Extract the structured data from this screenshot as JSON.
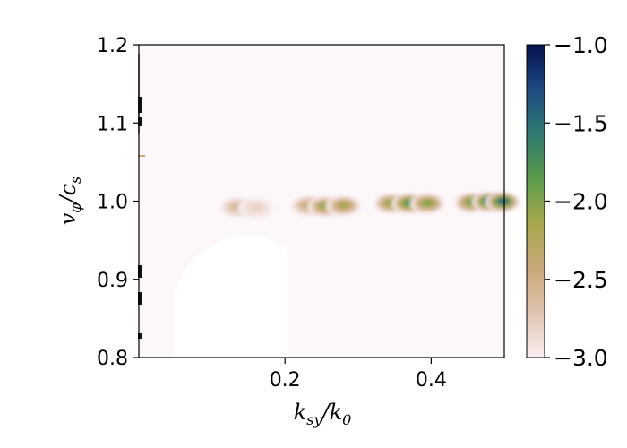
{
  "chart_data": {
    "type": "heatmap",
    "title": "",
    "xlabel": "k_sy/k_0",
    "ylabel": "v_φ/c_s",
    "xlim": [
      0.0,
      0.5
    ],
    "ylim": [
      0.8,
      1.2
    ],
    "x_ticks": [
      {
        "value": 0.2,
        "label": "0.2"
      },
      {
        "value": 0.4,
        "label": "0.4"
      }
    ],
    "y_ticks": [
      {
        "value": 0.8,
        "label": "0.8"
      },
      {
        "value": 0.9,
        "label": "0.9"
      },
      {
        "value": 1.0,
        "label": "1.0"
      },
      {
        "value": 1.1,
        "label": "1.1"
      },
      {
        "value": 1.2,
        "label": "1.2"
      }
    ],
    "colorbar": {
      "range": [
        -3.0,
        -1.0
      ],
      "ticks": [
        {
          "value": -1.0,
          "label": "−1.0"
        },
        {
          "value": -1.5,
          "label": "−1.5"
        },
        {
          "value": -2.0,
          "label": "−2.0"
        },
        {
          "value": -2.5,
          "label": "−2.5"
        },
        {
          "value": -3.0,
          "label": "−3.0"
        }
      ],
      "colors": [
        "#f9eef0",
        "#e0c4b0",
        "#c8a878",
        "#a8a84c",
        "#5a9c4a",
        "#2e7a70",
        "#1e4a84",
        "#06114e"
      ]
    },
    "blobs": [
      {
        "k": 0.135,
        "v": 0.993,
        "peak": -2.55
      },
      {
        "k": 0.16,
        "v": 0.992,
        "peak": -2.8
      },
      {
        "k": 0.232,
        "v": 0.995,
        "peak": -2.35
      },
      {
        "k": 0.255,
        "v": 0.994,
        "peak": -2.0
      },
      {
        "k": 0.28,
        "v": 0.995,
        "peak": -2.1
      },
      {
        "k": 0.345,
        "v": 0.998,
        "peak": -2.0
      },
      {
        "k": 0.37,
        "v": 0.998,
        "peak": -1.6
      },
      {
        "k": 0.395,
        "v": 0.998,
        "peak": -1.9
      },
      {
        "k": 0.455,
        "v": 0.999,
        "peak": -1.8
      },
      {
        "k": 0.48,
        "v": 1.0,
        "peak": -1.2
      },
      {
        "k": 0.498,
        "v": 1.0,
        "peak": -1.3
      }
    ]
  }
}
